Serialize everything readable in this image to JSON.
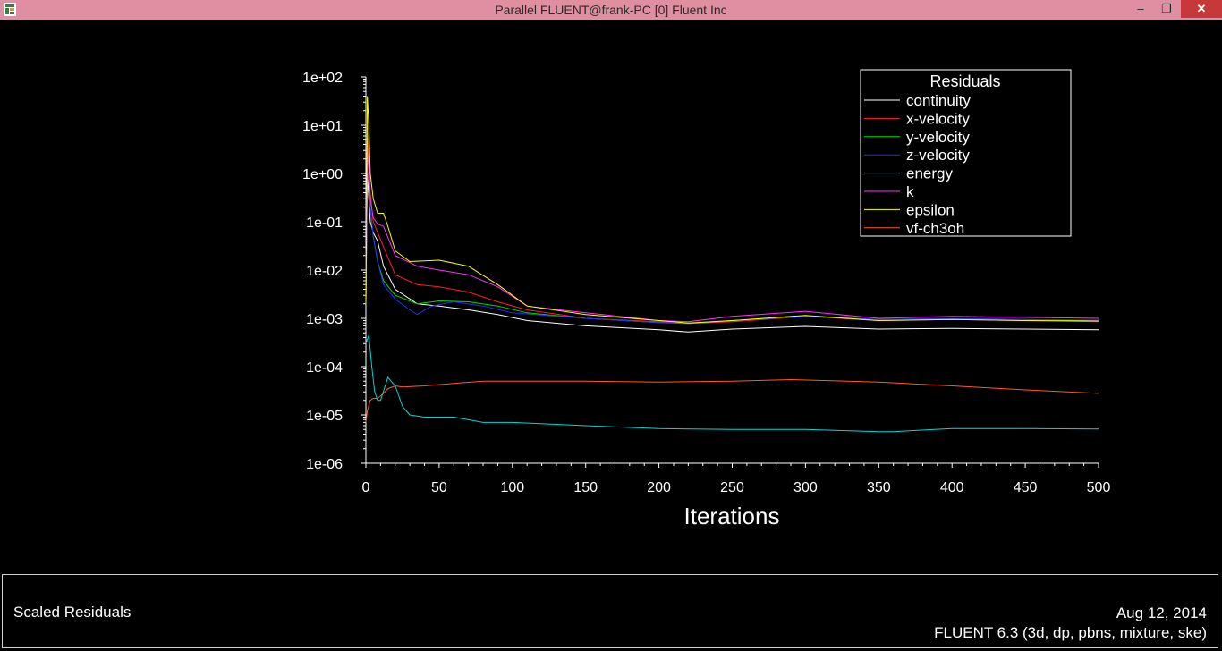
{
  "window": {
    "title": "Parallel FLUENT@frank-PC [0] Fluent Inc",
    "minimize_icon": "minimize-icon",
    "maximize_icon": "restore-icon",
    "close_icon": "close-icon"
  },
  "footer": {
    "left": "Scaled Residuals",
    "date": "Aug 12, 2014",
    "version": "FLUENT 6.3 (3d, dp, pbns, mixture, ske)"
  },
  "chart_data": {
    "type": "line",
    "title": "",
    "xlabel": "Iterations",
    "ylabel": "",
    "xlim": [
      0,
      500
    ],
    "ylim": [
      1e-06,
      100
    ],
    "yscale": "log",
    "grid": false,
    "legend_title": "Residuals",
    "legend_position": "top-right",
    "x_ticks": [
      "0",
      "50",
      "100",
      "150",
      "200",
      "250",
      "300",
      "350",
      "400",
      "450",
      "500"
    ],
    "y_ticks": [
      "1e-06",
      "1e-05",
      "1e-04",
      "1e-03",
      "1e-02",
      "1e-01",
      "1e+00",
      "1e+01",
      "1e+02"
    ],
    "series": [
      {
        "name": "continuity",
        "color": "#ffffff",
        "x": [
          0,
          1,
          2,
          3,
          5,
          8,
          12,
          20,
          35,
          50,
          70,
          90,
          110,
          150,
          200,
          220,
          250,
          300,
          350,
          400,
          450,
          500
        ],
        "y": [
          0.002,
          1.0,
          0.3,
          0.1,
          0.06,
          0.04,
          0.012,
          0.004,
          0.002,
          0.0018,
          0.0015,
          0.0012,
          0.0009,
          0.0007,
          0.00058,
          0.00052,
          0.0006,
          0.00068,
          0.0006,
          0.00062,
          0.0006,
          0.00058
        ]
      },
      {
        "name": "x-velocity",
        "color": "#ff2020",
        "x": [
          0,
          1,
          2,
          3,
          5,
          8,
          12,
          20,
          35,
          50,
          70,
          90,
          110,
          150,
          200,
          220,
          250,
          300,
          350,
          400,
          450,
          500
        ],
        "y": [
          0.003,
          10,
          3,
          0.4,
          0.1,
          0.06,
          0.03,
          0.008,
          0.005,
          0.0045,
          0.0035,
          0.0022,
          0.0015,
          0.001,
          0.00085,
          0.00078,
          0.00085,
          0.0011,
          0.0009,
          0.00095,
          0.0009,
          0.00085
        ]
      },
      {
        "name": "y-velocity",
        "color": "#00dd00",
        "x": [
          0,
          1,
          2,
          3,
          5,
          8,
          12,
          20,
          35,
          50,
          70,
          90,
          110,
          150,
          200,
          220,
          250,
          300,
          350,
          400,
          450,
          500
        ],
        "y": [
          0.003,
          5,
          1,
          0.2,
          0.05,
          0.015,
          0.006,
          0.003,
          0.002,
          0.0023,
          0.0022,
          0.0018,
          0.0013,
          0.001,
          0.00082,
          0.00078,
          0.0009,
          0.0011,
          0.00095,
          0.00098,
          0.00095,
          0.0009
        ]
      },
      {
        "name": "z-velocity",
        "color": "#2030ff",
        "x": [
          0,
          1,
          2,
          3,
          5,
          8,
          12,
          20,
          30,
          35,
          45,
          60,
          80,
          100,
          150,
          200,
          220,
          250,
          300,
          350,
          400,
          450,
          500
        ],
        "y": [
          0.003,
          8,
          1,
          0.2,
          0.05,
          0.015,
          0.005,
          0.0025,
          0.0015,
          0.0012,
          0.0018,
          0.0022,
          0.0018,
          0.0013,
          0.001,
          0.00082,
          0.0008,
          0.0009,
          0.0011,
          0.00095,
          0.00098,
          0.00095,
          0.00092
        ]
      },
      {
        "name": "energy",
        "color": "#00d8d8",
        "x": [
          0,
          2,
          4,
          6,
          8,
          10,
          15,
          20,
          25,
          30,
          40,
          60,
          80,
          100,
          150,
          200,
          250,
          300,
          350,
          360,
          400,
          450,
          500
        ],
        "y": [
          0.0003,
          0.00045,
          0.0001,
          3e-05,
          2e-05,
          2e-05,
          6e-05,
          4e-05,
          1.5e-05,
          1e-05,
          9e-06,
          9e-06,
          7e-06,
          7e-06,
          6e-06,
          5.2e-06,
          5e-06,
          5e-06,
          4.5e-06,
          4.5e-06,
          5.2e-06,
          5.2e-06,
          5.1e-06
        ]
      },
      {
        "name": "k",
        "color": "#ff30ff",
        "x": [
          0,
          1,
          2,
          3,
          5,
          8,
          12,
          20,
          35,
          50,
          70,
          90,
          110,
          150,
          200,
          220,
          250,
          300,
          350,
          400,
          450,
          500
        ],
        "y": [
          0.002,
          5,
          1,
          0.3,
          0.12,
          0.09,
          0.08,
          0.02,
          0.012,
          0.01,
          0.008,
          0.0045,
          0.0018,
          0.0013,
          0.0009,
          0.00085,
          0.0011,
          0.0014,
          0.001,
          0.0011,
          0.00105,
          0.001
        ]
      },
      {
        "name": "epsilon",
        "color": "#ffff00",
        "x": [
          0,
          1,
          2,
          3,
          5,
          8,
          12,
          15,
          20,
          30,
          50,
          70,
          90,
          110,
          150,
          200,
          220,
          250,
          300,
          350,
          400,
          450,
          500
        ],
        "y": [
          0.002,
          40,
          10,
          1,
          0.3,
          0.15,
          0.15,
          0.08,
          0.025,
          0.015,
          0.016,
          0.012,
          0.005,
          0.0018,
          0.0012,
          0.0009,
          0.0008,
          0.0009,
          0.00115,
          0.0009,
          0.00095,
          0.0009,
          0.00088
        ]
      },
      {
        "name": "vf-ch3oh",
        "color": "#ff5a1e",
        "x": [
          0,
          1,
          3,
          5,
          8,
          12,
          15,
          20,
          25,
          40,
          60,
          80,
          100,
          150,
          200,
          250,
          290,
          350,
          400,
          450,
          500
        ],
        "y": [
          7e-06,
          1.2e-05,
          2e-05,
          2.2e-05,
          2.2e-05,
          2.8e-05,
          3.5e-05,
          4e-05,
          3.8e-05,
          4e-05,
          4.5e-05,
          5e-05,
          5e-05,
          5e-05,
          4.8e-05,
          5e-05,
          5.4e-05,
          4.8e-05,
          4e-05,
          3.3e-05,
          2.8e-05
        ]
      }
    ]
  }
}
